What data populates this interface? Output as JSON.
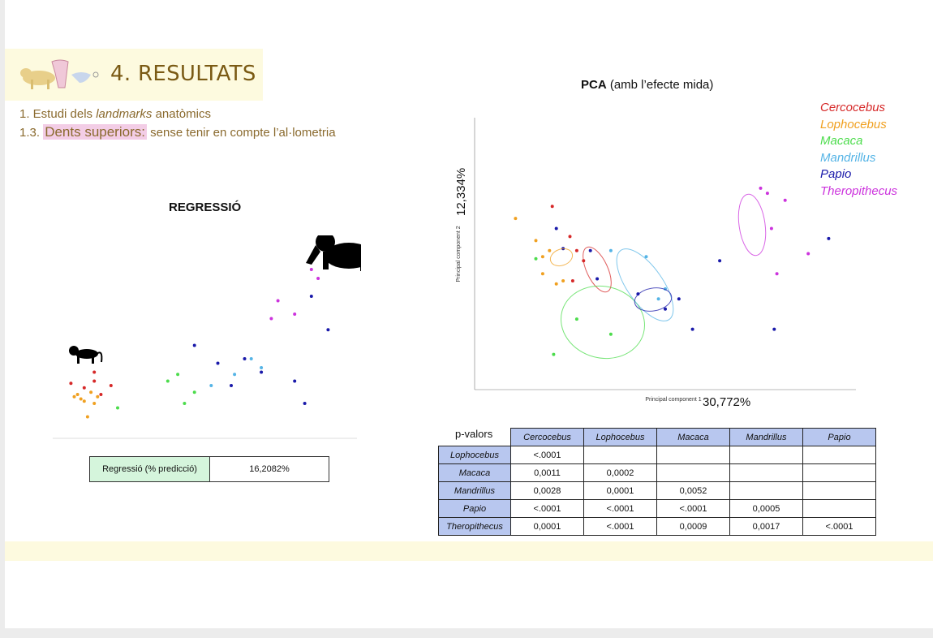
{
  "title": "4. RESULTATS",
  "subtitle_1": {
    "prefix": "1. Estudi dels ",
    "italic": "landmarks",
    "suffix": " anatòmics"
  },
  "subtitle_2": {
    "prefix": "1.3. ",
    "highlight": "Dents superiors:",
    "suffix": " sense tenir en compte l’al·lometria"
  },
  "regression": {
    "title": "REGRESSIÓ",
    "table_label": "Regressió (% predicció)",
    "table_value": "16,2082%"
  },
  "pca": {
    "title_bold": "PCA",
    "title_rest": " (amb l’efecte mida)",
    "pc1_pct": "30,772%",
    "pc2_pct": "12,334%"
  },
  "legend": [
    {
      "name": "Cercocebus",
      "color": "#d62828"
    },
    {
      "name": "Lophocebus",
      "color": "#f0a020"
    },
    {
      "name": "Macaca",
      "color": "#4cdc4c"
    },
    {
      "name": "Mandrillus",
      "color": "#55b4e6"
    },
    {
      "name": "Papio",
      "color": "#1a1aaa"
    },
    {
      "name": "Theropithecus",
      "color": "#cc33dd"
    }
  ],
  "pvalues": {
    "caption": "p-valors",
    "columns": [
      "Cercocebus",
      "Lophocebus",
      "Macaca",
      "Mandrillus",
      "Papio"
    ],
    "rows": [
      {
        "name": "Lophocebus",
        "values": [
          "<.0001",
          "",
          "",
          "",
          ""
        ]
      },
      {
        "name": "Macaca",
        "values": [
          "0,0011",
          "0,0002",
          "",
          "",
          ""
        ]
      },
      {
        "name": "Mandrillus",
        "values": [
          "0,0028",
          "0,0001",
          "0,0052",
          "",
          ""
        ]
      },
      {
        "name": "Papio",
        "values": [
          "<.0001",
          "<.0001",
          "<.0001",
          "0,0005",
          ""
        ]
      },
      {
        "name": "Theropithecus",
        "values": [
          "0,0001",
          "<.0001",
          "0,0009",
          "0,0017",
          "<.0001"
        ]
      }
    ]
  },
  "chart_data": [
    {
      "type": "scatter",
      "title": "",
      "xlabel": "",
      "ylabel": "",
      "series": [
        {
          "name": "Cercocebus",
          "points": [
            [
              -0.12,
              0.01
            ],
            [
              -0.05,
              0.06
            ],
            [
              0.0,
              0.0
            ],
            [
              -0.08,
              -0.01
            ],
            [
              -0.03,
              -0.04
            ],
            [
              -0.05,
              0.02
            ]
          ]
        },
        {
          "name": "Lophocebus",
          "points": [
            [
              -0.11,
              -0.05
            ],
            [
              -0.08,
              -0.07
            ],
            [
              -0.06,
              -0.03
            ],
            [
              -0.09,
              -0.06
            ],
            [
              -0.07,
              -0.14
            ],
            [
              -0.04,
              -0.05
            ],
            [
              -0.1,
              -0.04
            ],
            [
              -0.05,
              -0.08
            ]
          ]
        },
        {
          "name": "Macaca",
          "points": [
            [
              0.02,
              -0.1
            ],
            [
              0.17,
              0.02
            ],
            [
              0.2,
              0.05
            ],
            [
              0.25,
              -0.03
            ],
            [
              0.22,
              -0.08
            ]
          ]
        },
        {
          "name": "Mandrillus",
          "points": [
            [
              0.3,
              0.0
            ],
            [
              0.37,
              0.05
            ],
            [
              0.42,
              0.12
            ],
            [
              0.45,
              0.08
            ]
          ]
        },
        {
          "name": "Papio",
          "points": [
            [
              0.25,
              0.18
            ],
            [
              0.32,
              0.1
            ],
            [
              0.36,
              0.0
            ],
            [
              0.4,
              0.12
            ],
            [
              0.45,
              0.06
            ],
            [
              0.55,
              0.02
            ],
            [
              0.58,
              -0.08
            ],
            [
              0.6,
              0.4
            ],
            [
              0.65,
              0.25
            ]
          ]
        },
        {
          "name": "Theropithecus",
          "points": [
            [
              0.48,
              0.3
            ],
            [
              0.5,
              0.38
            ],
            [
              0.55,
              0.32
            ],
            [
              0.6,
              0.52
            ],
            [
              0.62,
              0.48
            ]
          ]
        }
      ]
    },
    {
      "type": "scatter",
      "title": "PCA (amb l’efecte mida)",
      "xlabel": "Principal component 1",
      "ylabel": "Principal component 2",
      "series": [
        {
          "name": "Cercocebus",
          "points": [
            [
              -0.063,
              0.062
            ],
            [
              -0.05,
              0.032
            ],
            [
              -0.045,
              0.018
            ],
            [
              -0.04,
              0.008
            ],
            [
              -0.048,
              -0.012
            ]
          ]
        },
        {
          "name": "Lophocebus",
          "points": [
            [
              -0.09,
              0.05
            ],
            [
              -0.075,
              0.028
            ],
            [
              -0.07,
              0.012
            ],
            [
              -0.065,
              0.018
            ],
            [
              -0.07,
              -0.005
            ],
            [
              -0.06,
              -0.015
            ],
            [
              -0.055,
              -0.012
            ]
          ]
        },
        {
          "name": "Macaca",
          "points": [
            [
              -0.075,
              0.01
            ],
            [
              -0.045,
              -0.05
            ],
            [
              -0.062,
              -0.085
            ],
            [
              -0.02,
              -0.065
            ]
          ]
        },
        {
          "name": "Mandrillus",
          "points": [
            [
              -0.02,
              0.018
            ],
            [
              0.006,
              0.012
            ],
            [
              0.02,
              -0.02
            ],
            [
              0.015,
              -0.03
            ]
          ]
        },
        {
          "name": "Papio",
          "points": [
            [
              -0.06,
              0.04
            ],
            [
              -0.055,
              0.02
            ],
            [
              -0.035,
              0.018
            ],
            [
              -0.03,
              -0.01
            ],
            [
              0.0,
              -0.025
            ],
            [
              0.02,
              -0.04
            ],
            [
              0.03,
              -0.03
            ],
            [
              0.04,
              -0.06
            ],
            [
              0.06,
              0.008
            ],
            [
              0.14,
              0.03
            ],
            [
              0.1,
              -0.06
            ]
          ]
        },
        {
          "name": "Theropithecus",
          "points": [
            [
              0.09,
              0.08
            ],
            [
              0.095,
              0.075
            ],
            [
              0.108,
              0.068
            ],
            [
              0.098,
              0.04
            ],
            [
              0.102,
              -0.005
            ],
            [
              0.125,
              0.015
            ]
          ]
        }
      ]
    }
  ]
}
